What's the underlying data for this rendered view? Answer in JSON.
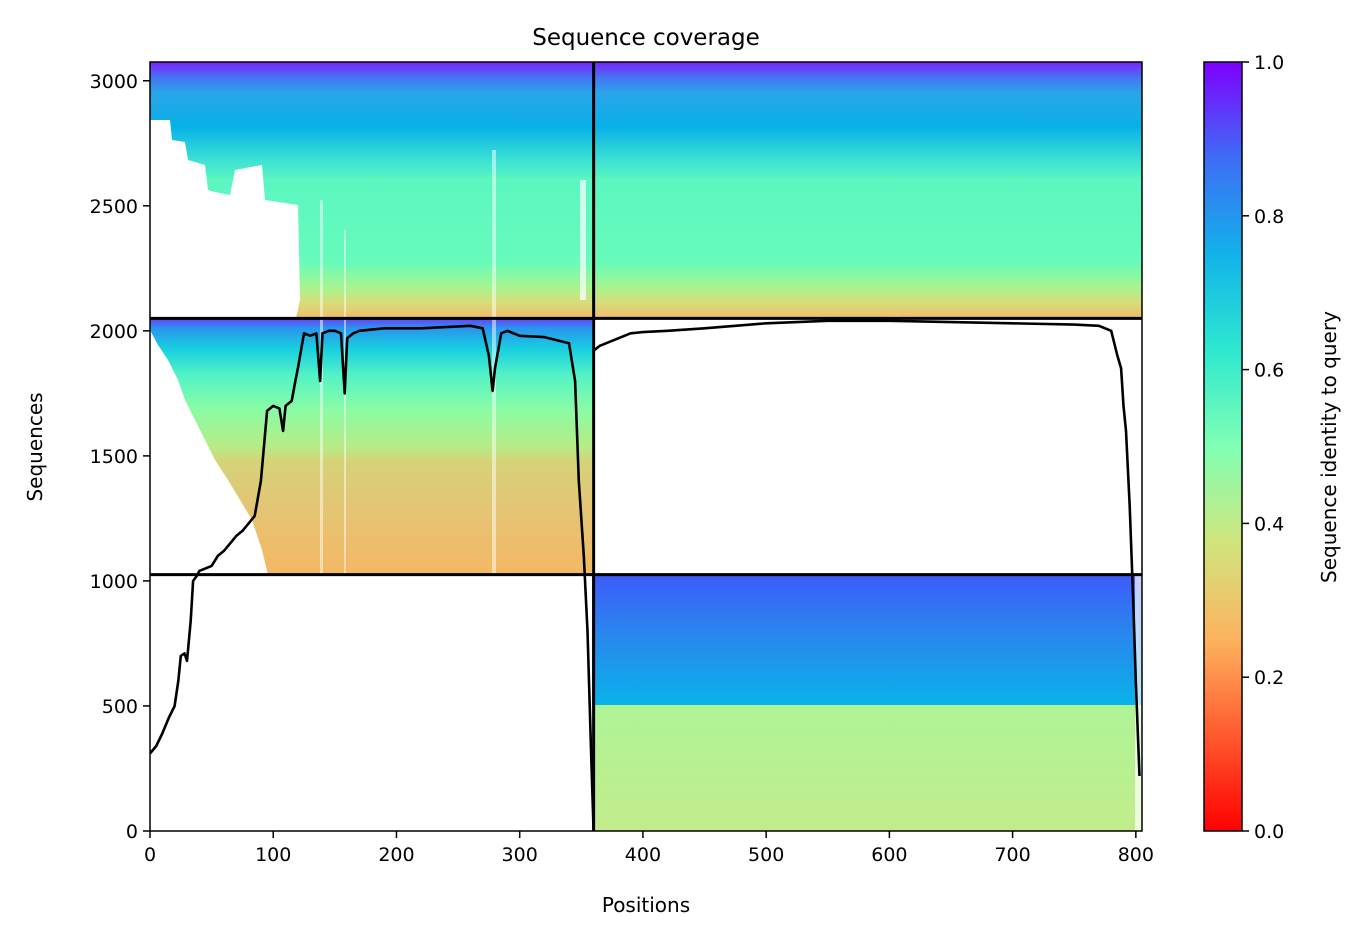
{
  "chart_data": {
    "type": "heatmap",
    "title": "Sequence coverage",
    "xlabel": "Positions",
    "ylabel": "Sequences",
    "xlim": [
      0,
      805
    ],
    "ylim": [
      0,
      3075
    ],
    "x_ticks": [
      0,
      100,
      200,
      300,
      400,
      500,
      600,
      700,
      800
    ],
    "x_tick_labels": [
      "0",
      "100",
      "200",
      "300",
      "400",
      "500",
      "600",
      "700",
      "800"
    ],
    "y_ticks": [
      0,
      500,
      1000,
      1500,
      2000,
      2500,
      3000
    ],
    "y_tick_labels": [
      "0",
      "500",
      "1000",
      "1500",
      "2000",
      "2500",
      "3000"
    ],
    "grid": false,
    "colormap": "rainbow_r",
    "colorbar": {
      "label": "Sequence identity to query",
      "range": [
        0.0,
        1.0
      ],
      "ticks": [
        0.0,
        0.2,
        0.4,
        0.6,
        0.8,
        1.0
      ],
      "tick_labels": [
        "0.0",
        "0.2",
        "0.4",
        "0.6",
        "0.8",
        "1.0"
      ]
    },
    "chain_boundary_x": 360,
    "block_boundaries_y": [
      1025,
      2050
    ],
    "blocks": [
      {
        "x_range": [
          360,
          805
        ],
        "y_range": [
          0,
          505
        ],
        "identity": [
          0.42,
          0.47
        ]
      },
      {
        "x_range": [
          360,
          805
        ],
        "y_range": [
          505,
          1025
        ],
        "identity": [
          0.78,
          0.9
        ]
      },
      {
        "x_range": [
          0,
          360
        ],
        "y_range": [
          1025,
          2050
        ],
        "identity": [
          0.27,
          0.9
        ]
      },
      {
        "x_range": [
          0,
          805
        ],
        "y_range": [
          2050,
          3075
        ],
        "identity": [
          0.3,
          0.95
        ]
      }
    ],
    "series": [
      {
        "type": "line",
        "color": "#000000",
        "x": [
          0,
          5,
          10,
          15,
          20,
          23,
          25,
          28,
          30,
          33,
          35,
          38,
          40,
          45,
          50,
          55,
          60,
          65,
          70,
          75,
          80,
          85,
          90,
          95,
          100,
          105,
          108,
          110,
          115,
          118,
          120,
          125,
          130,
          135,
          138,
          140,
          145,
          150,
          155,
          158,
          160,
          165,
          170,
          180,
          190,
          200,
          220,
          240,
          260,
          270,
          275,
          278,
          280,
          285,
          290,
          300,
          320,
          340,
          345,
          348,
          352,
          355,
          358,
          360
        ],
        "y": [
          310,
          340,
          390,
          450,
          500,
          600,
          700,
          710,
          680,
          840,
          1000,
          1020,
          1040,
          1050,
          1060,
          1100,
          1120,
          1150,
          1180,
          1200,
          1230,
          1260,
          1400,
          1680,
          1700,
          1690,
          1600,
          1700,
          1720,
          1800,
          1850,
          1990,
          1980,
          1990,
          1800,
          1990,
          2000,
          2000,
          1990,
          1750,
          1970,
          1990,
          2000,
          2005,
          2010,
          2010,
          2010,
          2015,
          2020,
          2010,
          1900,
          1760,
          1850,
          1990,
          2000,
          1980,
          1975,
          1950,
          1800,
          1400,
          1100,
          800,
          300,
          0
        ]
      },
      {
        "type": "line",
        "color": "#000000",
        "x": [
          360,
          365,
          370,
          380,
          390,
          400,
          420,
          450,
          500,
          550,
          600,
          650,
          700,
          750,
          770,
          780,
          785,
          788,
          790,
          792,
          795,
          798,
          800,
          803
        ],
        "y": [
          1920,
          1940,
          1950,
          1970,
          1990,
          1995,
          2000,
          2010,
          2030,
          2040,
          2040,
          2035,
          2030,
          2025,
          2020,
          2000,
          1900,
          1850,
          1700,
          1600,
          1300,
          900,
          600,
          220
        ]
      }
    ]
  }
}
